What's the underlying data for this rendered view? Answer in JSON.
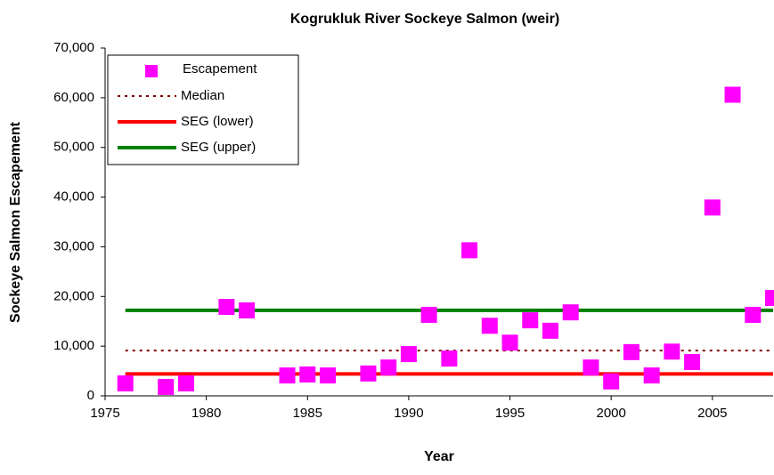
{
  "chart_data": {
    "type": "scatter",
    "title": "Kogrukluk River Sockeye Salmon (weir)",
    "x_label": "Year",
    "y_label": "Sockeye Salmon Escapement",
    "series": [
      {
        "name": "Escapement",
        "color": "#ff00ff",
        "x": [
          1976,
          1978,
          1979,
          1981,
          1982,
          1984,
          1985,
          1986,
          1988,
          1989,
          1990,
          1991,
          1992,
          1993,
          1994,
          1995,
          1996,
          1997,
          1998,
          1999,
          2000,
          2001,
          2002,
          2003,
          2004,
          2005,
          2006,
          2007,
          2008
        ],
        "values": [
          2500,
          1800,
          2500,
          17900,
          17200,
          4100,
          4300,
          4100,
          4500,
          5700,
          8400,
          16300,
          7500,
          29300,
          14100,
          10700,
          15200,
          13100,
          16800,
          5700,
          2900,
          8800,
          4100,
          8900,
          6800,
          37900,
          60600,
          16300,
          19700
        ]
      }
    ],
    "reference_lines": [
      {
        "name": "Median",
        "color": "#800000",
        "style": "dotted",
        "value": 9100
      },
      {
        "name": "SEG (lower)",
        "color": "#ff0000",
        "style": "solid",
        "value": 4400
      },
      {
        "name": "SEG (upper)",
        "color": "#008000",
        "style": "solid",
        "value": 17200
      }
    ],
    "xlim": [
      1975,
      2008
    ],
    "xticks": [
      1975,
      1980,
      1985,
      1990,
      1995,
      2000,
      2005
    ],
    "ylim": [
      0,
      70000
    ],
    "yticks": [
      0,
      {
        "value": 10000,
        "label": "10,000"
      },
      {
        "value": 20000,
        "label": "20,000"
      },
      {
        "value": 30000,
        "label": "30,000"
      },
      {
        "value": 40000,
        "label": "40,000"
      },
      {
        "value": 50000,
        "label": "50,000"
      },
      {
        "value": 60000,
        "label": "60,000"
      },
      {
        "value": 70000,
        "label": "70,000"
      }
    ],
    "legend": "upper left"
  }
}
